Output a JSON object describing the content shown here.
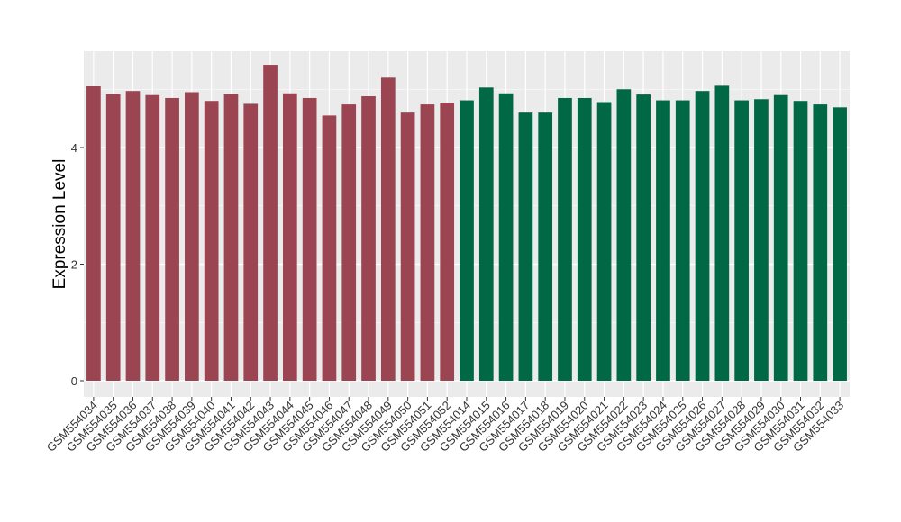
{
  "chart_data": {
    "type": "bar",
    "title": "",
    "xlabel": "",
    "ylabel": "Expression Level",
    "ylim": [
      0,
      5.6
    ],
    "y_ticks": [
      0,
      2,
      4
    ],
    "grid": true,
    "legend": "none",
    "categories": [
      "GSM554034",
      "GSM554035",
      "GSM554036",
      "GSM554037",
      "GSM554038",
      "GSM554039",
      "GSM554040",
      "GSM554041",
      "GSM554042",
      "GSM554043",
      "GSM554044",
      "GSM554045",
      "GSM554046",
      "GSM554047",
      "GSM554048",
      "GSM554049",
      "GSM554050",
      "GSM554051",
      "GSM554052",
      "GSM554014",
      "GSM554015",
      "GSM554016",
      "GSM554017",
      "GSM554018",
      "GSM554019",
      "GSM554020",
      "GSM554021",
      "GSM554022",
      "GSM554023",
      "GSM554024",
      "GSM554025",
      "GSM554026",
      "GSM554027",
      "GSM554028",
      "GSM554029",
      "GSM554030",
      "GSM554031",
      "GSM554032",
      "GSM554033"
    ],
    "values": [
      5.05,
      4.92,
      4.97,
      4.9,
      4.85,
      4.95,
      4.8,
      4.92,
      4.75,
      5.42,
      4.93,
      4.85,
      4.55,
      4.74,
      4.88,
      5.2,
      4.6,
      4.74,
      4.77,
      4.81,
      5.03,
      4.93,
      4.6,
      4.6,
      4.85,
      4.85,
      4.78,
      5.0,
      4.91,
      4.81,
      4.81,
      4.97,
      5.06,
      4.81,
      4.83,
      4.9,
      4.8,
      4.74,
      4.69
    ],
    "group_sizes": [
      19,
      20
    ],
    "colors": [
      "#9b4452",
      "#006844"
    ]
  }
}
